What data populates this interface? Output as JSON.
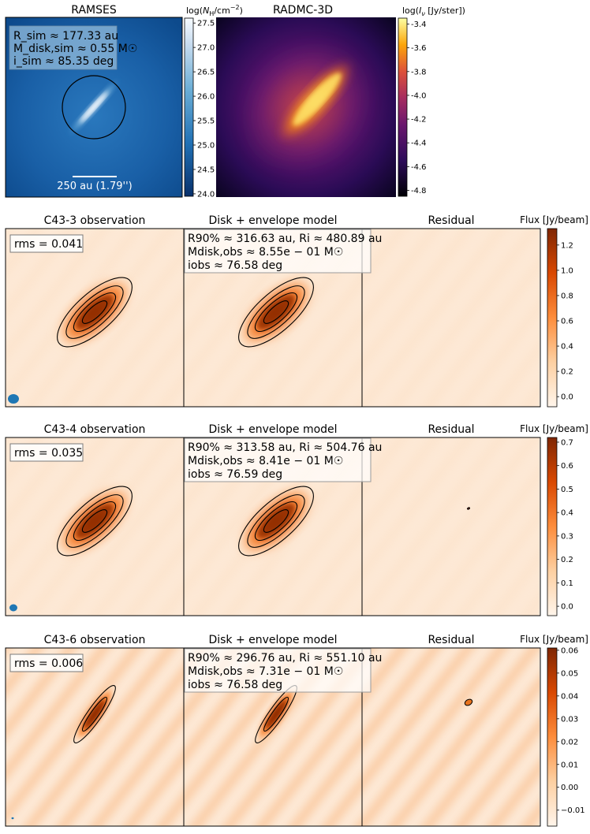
{
  "chart_data": [
    {
      "type": "heatmap",
      "title": "RAMSES",
      "colorbar_label": "log(N_H/cm^-2)",
      "colorbar_ticks": [
        "27.5",
        "27.0",
        "26.5",
        "26.0",
        "25.5",
        "25.0",
        "24.5",
        "24.0"
      ],
      "colorbar_range": [
        23.95,
        27.6
      ],
      "annotations": [
        "R_sim ≈ 177.33 au",
        "M_disk,sim ≈ 0.55 M☉",
        "i_sim ≈ 85.35 deg"
      ],
      "scale_bar_label": "250 au (1.79'')"
    },
    {
      "type": "heatmap",
      "title": "RADMC-3D",
      "colorbar_label": "log(I_ν [Jy/ster])",
      "colorbar_ticks": [
        "-3.4",
        "-3.6",
        "-3.8",
        "-4.0",
        "-4.2",
        "-4.4",
        "-4.6",
        "-4.8"
      ],
      "colorbar_range": [
        -4.85,
        -3.35
      ]
    }
  ],
  "rows": [
    {
      "obs_title": "C43-3 observation",
      "model_title": "Disk + envelope model",
      "resid_title": "Residual",
      "rms": "rms = 0.041",
      "r90": "R90% ≈ 316.63 au, Ri ≈ 480.89 au",
      "mdisk": "Mdisk,obs ≈ 8.55e − 01 M☉",
      "iobs": "iobs ≈ 76.58 deg",
      "cbar_label": "Flux [Jy/beam]",
      "cbar_ticks": [
        "1.2",
        "1.0",
        "0.8",
        "0.6",
        "0.4",
        "0.2",
        "0.0"
      ],
      "cbar_values": [
        1.2,
        1.0,
        0.8,
        0.6,
        0.4,
        0.2,
        0.0
      ],
      "cbar_range": [
        -0.08,
        1.33
      ]
    },
    {
      "obs_title": "C43-4 observation",
      "model_title": "Disk + envelope model",
      "resid_title": "Residual",
      "rms": "rms = 0.035",
      "r90": "R90% ≈ 313.58 au, Ri ≈ 504.76 au",
      "mdisk": "Mdisk,obs ≈ 8.41e − 01 M☉",
      "iobs": "iobs ≈ 76.59 deg",
      "cbar_label": "Flux [Jy/beam]",
      "cbar_ticks": [
        "0.7",
        "0.6",
        "0.5",
        "0.4",
        "0.3",
        "0.2",
        "0.1",
        "0.0"
      ],
      "cbar_values": [
        0.7,
        0.6,
        0.5,
        0.4,
        0.3,
        0.2,
        0.1,
        0.0
      ],
      "cbar_range": [
        -0.04,
        0.72
      ]
    },
    {
      "obs_title": "C43-6 observation",
      "model_title": "Disk + envelope model",
      "resid_title": "Residual",
      "rms": "rms = 0.006",
      "r90": "R90% ≈ 296.76 au, Ri ≈ 551.10 au",
      "mdisk": "Mdisk,obs ≈ 7.31e − 01 M☉",
      "iobs": "iobs ≈ 76.58 deg",
      "cbar_label": "Flux [Jy/beam]",
      "cbar_ticks": [
        "0.06",
        "0.05",
        "0.04",
        "0.03",
        "0.02",
        "0.01",
        "0.00",
        "−0.01"
      ],
      "cbar_values": [
        0.06,
        0.05,
        0.04,
        0.03,
        0.02,
        0.01,
        0.0,
        -0.01
      ],
      "cbar_range": [
        -0.017,
        0.061
      ]
    }
  ]
}
